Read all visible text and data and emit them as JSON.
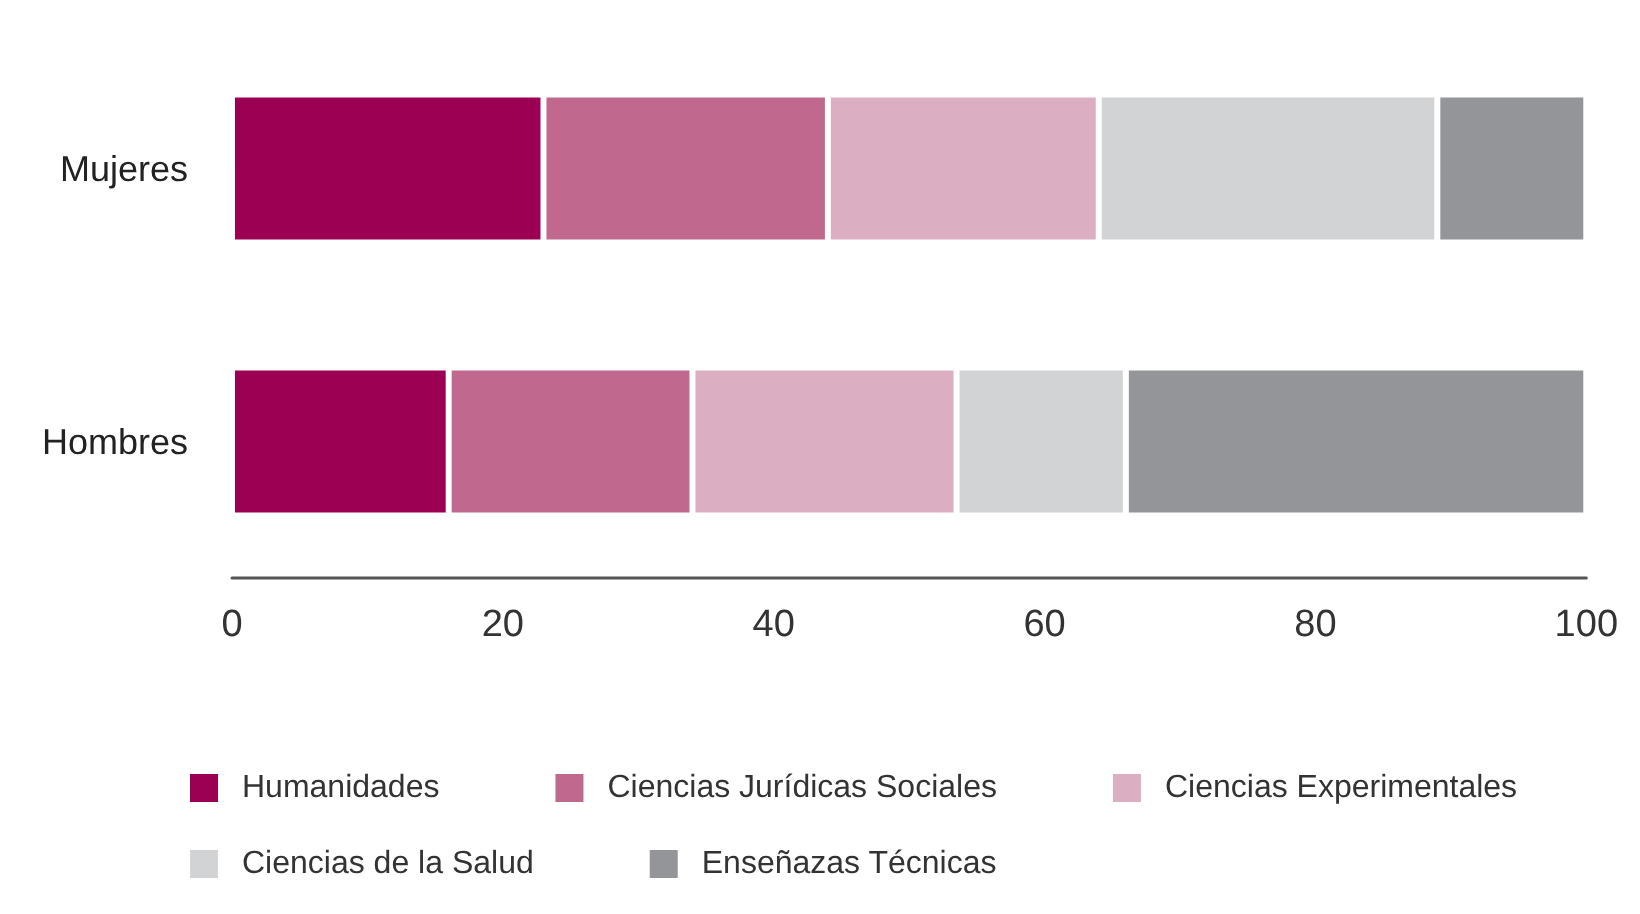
{
  "chart_data": {
    "type": "bar",
    "orientation": "horizontal",
    "stacked": true,
    "categories": [
      "Mujeres",
      "Hombres"
    ],
    "series": [
      {
        "name": "Humanidades",
        "color": "#9c0052",
        "values": [
          23,
          16
        ]
      },
      {
        "name": "Ciencias Jurídicas Sociales",
        "color": "#c0688e",
        "values": [
          21,
          18
        ]
      },
      {
        "name": "Ciencias Experimentales",
        "color": "#dbaec2",
        "values": [
          20,
          19.5
        ]
      },
      {
        "name": "Ciencias de la Salud",
        "color": "#d2d3d5",
        "values": [
          25,
          12.5
        ]
      },
      {
        "name": "Enseñazas Técnicas",
        "color": "#939598",
        "values": [
          11,
          34
        ]
      }
    ],
    "xlim": [
      0,
      100
    ],
    "xticks": [
      0,
      20,
      40,
      60,
      80,
      100
    ],
    "grid": false,
    "legend": "bottom"
  }
}
